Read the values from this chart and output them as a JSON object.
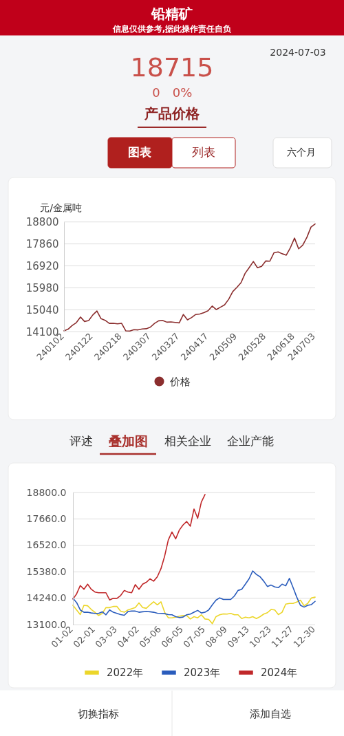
{
  "chart_data": [
    {
      "type": "line",
      "title": "铅精矿",
      "subtitle": "信息仅供参考,据此操作责任自负",
      "ylabel": "元/金属吨",
      "annotations": [
        "2024-07-03",
        "18715",
        "0",
        "0%",
        "产品价格",
        "图表",
        "列表",
        "六个月"
      ],
      "categories": [
        "240102",
        null,
        null,
        null,
        null,
        null,
        null,
        "240122",
        null,
        null,
        null,
        null,
        null,
        null,
        "240218",
        null,
        null,
        null,
        null,
        null,
        null,
        "240307",
        null,
        null,
        null,
        null,
        null,
        null,
        "240327",
        null,
        null,
        null,
        null,
        null,
        null,
        "240417",
        null,
        null,
        null,
        null,
        null,
        null,
        "240509",
        null,
        null,
        null,
        null,
        null,
        null,
        "240528",
        null,
        null,
        null,
        null,
        null,
        null,
        "240618",
        null,
        null,
        null,
        null,
        "240703"
      ],
      "series": [
        {
          "name": "价格",
          "color": "#8b2e2e",
          "values": [
            14140,
            14210,
            14370,
            14490,
            14730,
            14540,
            14580,
            14820,
            14990,
            14660,
            14590,
            14460,
            14460,
            14440,
            14460,
            14140,
            14130,
            14190,
            14180,
            14220,
            14230,
            14300,
            14460,
            14570,
            14580,
            14510,
            14520,
            14500,
            14480,
            14840,
            14610,
            14710,
            14840,
            14860,
            14920,
            15000,
            15200,
            15050,
            15150,
            15250,
            15490,
            15820,
            16000,
            16200,
            16600,
            16850,
            17110,
            16840,
            16900,
            17130,
            17120,
            17480,
            17520,
            17440,
            17380,
            17700,
            18110,
            17650,
            17810,
            18140,
            18580,
            18715
          ]
        }
      ],
      "ylim": [
        14100,
        18800
      ],
      "yticks": [
        14100,
        15040,
        15980,
        16920,
        17860,
        18800
      ],
      "grid": "y",
      "legend": "bottom"
    },
    {
      "type": "line",
      "annotations": [
        "评述",
        "叠加图",
        "相关企业",
        "企业产能",
        "切换指标",
        "添加自选"
      ],
      "categories": [
        "01-02",
        null,
        null,
        null,
        null,
        null,
        "02-01",
        null,
        null,
        null,
        null,
        null,
        "03-03",
        null,
        null,
        null,
        null,
        null,
        "04-02",
        null,
        null,
        null,
        null,
        null,
        "05-06",
        null,
        null,
        null,
        null,
        null,
        "06-05",
        null,
        null,
        null,
        null,
        null,
        "07-05",
        null,
        null,
        null,
        null,
        null,
        "08-09",
        null,
        null,
        null,
        null,
        null,
        "09-13",
        null,
        null,
        null,
        null,
        null,
        "10-23",
        null,
        null,
        null,
        null,
        null,
        "11-27",
        null,
        null,
        null,
        null,
        null,
        "12-30"
      ],
      "series": [
        {
          "name": "2022年",
          "color": "#ecd62a",
          "values": [
            13940,
            13740,
            13540,
            13940,
            13920,
            13760,
            13640,
            13500,
            13590,
            13840,
            13840,
            13890,
            13890,
            13690,
            13640,
            13740,
            13790,
            13840,
            14040,
            13840,
            13810,
            13960,
            14090,
            13960,
            14090,
            13640,
            13400,
            13400,
            13430,
            13470,
            13500,
            13500,
            13350,
            13450,
            13400,
            13530,
            13350,
            13330,
            13150,
            13450,
            13530,
            13570,
            13560,
            13590,
            13530,
            13530,
            13370,
            13430,
            13400,
            13450,
            13370,
            13450,
            13560,
            13620,
            13760,
            13740,
            13540,
            13640,
            13990,
            14020,
            14020,
            14080,
            14160,
            13920,
            14020,
            14260,
            14290
          ]
        },
        {
          "name": "2023年",
          "color": "#2a5cbc",
          "values": [
            14240,
            14060,
            13740,
            13640,
            13640,
            13610,
            13590,
            13590,
            13660,
            13530,
            13740,
            13640,
            13590,
            13540,
            13510,
            13670,
            13690,
            13690,
            13640,
            13660,
            13670,
            13660,
            13640,
            13600,
            13590,
            13580,
            13540,
            13530,
            13450,
            13410,
            13430,
            13530,
            13560,
            13640,
            13720,
            13610,
            13640,
            13740,
            13960,
            14160,
            14260,
            14190,
            14190,
            14190,
            14340,
            14580,
            14630,
            14850,
            15080,
            15420,
            15270,
            15170,
            14980,
            14750,
            14810,
            14730,
            14700,
            14850,
            14780,
            15100,
            14700,
            14290,
            13940,
            13860,
            13940,
            13970,
            14110
          ]
        },
        {
          "name": "2024年",
          "color": "#c0282a",
          "values": [
            14210,
            14430,
            14790,
            14630,
            14850,
            14630,
            14510,
            14480,
            14480,
            14480,
            14170,
            14240,
            14240,
            14360,
            14580,
            14510,
            14480,
            14830,
            14630,
            14850,
            14930,
            15080,
            14980,
            15170,
            15520,
            16060,
            16760,
            17100,
            16800,
            17180,
            17400,
            17550,
            17350,
            18090,
            17690,
            18390,
            18715,
            null,
            null,
            null,
            null,
            null,
            null,
            null,
            null,
            null,
            null,
            null,
            null,
            null,
            null,
            null,
            null,
            null,
            null,
            null,
            null,
            null,
            null,
            null,
            null,
            null,
            null,
            null,
            null,
            null,
            null
          ]
        }
      ],
      "ylim": [
        13100,
        18800
      ],
      "yticks": [
        {
          "value": 13100,
          "label": "13100.0"
        },
        {
          "value": 14240,
          "label": "14240.0"
        },
        {
          "value": 15380,
          "label": "15380.0"
        },
        {
          "value": 16520,
          "label": "16520.0"
        },
        {
          "value": 17660,
          "label": "17660.0"
        },
        {
          "value": 18800,
          "label": "18800.0"
        }
      ],
      "grid": "y",
      "legend": "bottom"
    }
  ]
}
